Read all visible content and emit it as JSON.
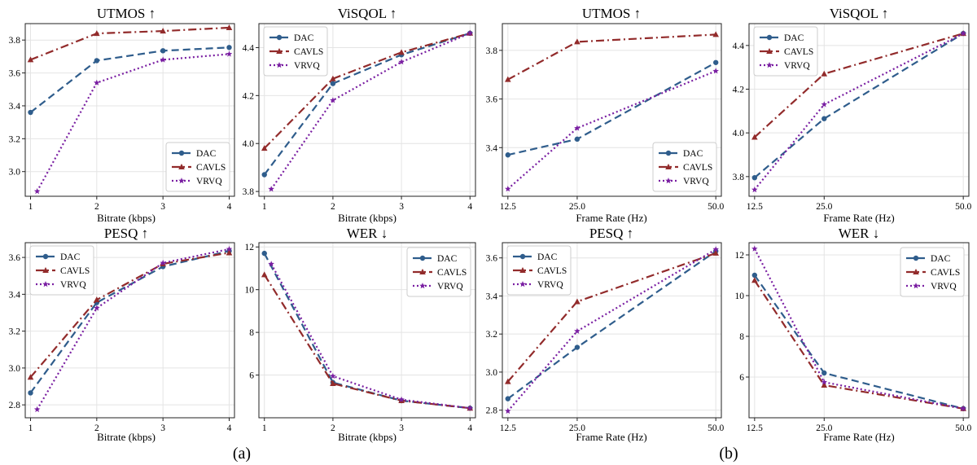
{
  "colors": {
    "DAC": "#2f5d8c",
    "CAVLS": "#922b2b",
    "VRVQ": "#7a1fa2"
  },
  "legend_names": [
    "DAC",
    "CAVLS",
    "VRVQ"
  ],
  "captions": [
    "(a)",
    "(b)"
  ],
  "chart_data": [
    {
      "type": "line",
      "group": "(a)",
      "title": "UTMOS ↑",
      "xlabel": "Bitrate (kbps)",
      "ylabel": "",
      "legend": "bottom-right",
      "grid": true,
      "xlim": [
        0.92,
        4.08
      ],
      "ylim": [
        2.85,
        3.9
      ],
      "xticks": [
        1,
        2,
        3,
        4
      ],
      "xtick_labels": [
        "1",
        "2",
        "3",
        "4"
      ],
      "yticks": [
        3.0,
        3.2,
        3.4,
        3.6,
        3.8
      ],
      "ytick_labels": [
        "3.0",
        "3.2",
        "3.4",
        "3.6",
        "3.8"
      ],
      "series": [
        {
          "name": "DAC",
          "x": [
            1,
            2,
            3,
            4
          ],
          "values": [
            3.36,
            3.675,
            3.735,
            3.755
          ]
        },
        {
          "name": "CAVLS",
          "x": [
            1,
            2,
            3,
            4
          ],
          "values": [
            3.68,
            3.84,
            3.855,
            3.875
          ]
        },
        {
          "name": "VRVQ",
          "x": [
            1.1,
            2,
            3,
            4
          ],
          "values": [
            2.88,
            3.54,
            3.68,
            3.715
          ]
        }
      ]
    },
    {
      "type": "line",
      "group": "(a)",
      "title": "ViSQOL ↑",
      "xlabel": "Bitrate (kbps)",
      "ylabel": "",
      "legend": "top-left",
      "grid": true,
      "xlim": [
        0.92,
        4.08
      ],
      "ylim": [
        3.78,
        4.5
      ],
      "xticks": [
        1,
        2,
        3,
        4
      ],
      "xtick_labels": [
        "1",
        "2",
        "3",
        "4"
      ],
      "yticks": [
        3.8,
        4.0,
        4.2,
        4.4
      ],
      "ytick_labels": [
        "3.8",
        "4.0",
        "4.2",
        "4.4"
      ],
      "series": [
        {
          "name": "DAC",
          "x": [
            1,
            2,
            3,
            4
          ],
          "values": [
            3.87,
            4.25,
            4.37,
            4.46
          ]
        },
        {
          "name": "CAVLS",
          "x": [
            1,
            2,
            3,
            4
          ],
          "values": [
            3.98,
            4.27,
            4.38,
            4.46
          ]
        },
        {
          "name": "VRVQ",
          "x": [
            1.1,
            2,
            3,
            4
          ],
          "values": [
            3.81,
            4.18,
            4.34,
            4.46
          ]
        }
      ]
    },
    {
      "type": "line",
      "group": "(b)",
      "title": "UTMOS ↑",
      "xlabel": "Frame Rate (Hz)",
      "ylabel": "",
      "legend": "bottom-right",
      "grid": true,
      "xlim": [
        11.5,
        51
      ],
      "ylim": [
        3.2,
        3.91
      ],
      "xticks": [
        12.5,
        25,
        50
      ],
      "xtick_labels": [
        "12.5",
        "25.0",
        "50.0"
      ],
      "yticks": [
        3.4,
        3.6,
        3.8
      ],
      "ytick_labels": [
        "3.4",
        "3.6",
        "3.8"
      ],
      "series": [
        {
          "name": "DAC",
          "x": [
            12.5,
            25,
            50
          ],
          "values": [
            3.37,
            3.435,
            3.75
          ]
        },
        {
          "name": "CAVLS",
          "x": [
            12.5,
            25,
            50
          ],
          "values": [
            3.68,
            3.835,
            3.865
          ]
        },
        {
          "name": "VRVQ",
          "x": [
            12.5,
            25,
            50
          ],
          "values": [
            3.23,
            3.48,
            3.715
          ]
        }
      ]
    },
    {
      "type": "line",
      "group": "(b)",
      "title": "ViSQOL ↑",
      "xlabel": "Frame Rate (Hz)",
      "ylabel": "",
      "legend": "top-left",
      "grid": true,
      "xlim": [
        11.5,
        51
      ],
      "ylim": [
        3.71,
        4.5
      ],
      "xticks": [
        12.5,
        25,
        50
      ],
      "xtick_labels": [
        "12.5",
        "25.0",
        "50.0"
      ],
      "yticks": [
        3.8,
        4.0,
        4.2,
        4.4
      ],
      "ytick_labels": [
        "3.8",
        "4.0",
        "4.2",
        "4.4"
      ],
      "series": [
        {
          "name": "DAC",
          "x": [
            12.5,
            25,
            50
          ],
          "values": [
            3.795,
            4.065,
            4.455
          ]
        },
        {
          "name": "CAVLS",
          "x": [
            12.5,
            25,
            50
          ],
          "values": [
            3.98,
            4.27,
            4.455
          ]
        },
        {
          "name": "VRVQ",
          "x": [
            12.5,
            25,
            50
          ],
          "values": [
            3.74,
            4.13,
            4.455
          ]
        }
      ]
    },
    {
      "type": "line",
      "group": "(a)",
      "title": "PESQ ↑",
      "xlabel": "Bitrate (kbps)",
      "ylabel": "",
      "legend": "top-left",
      "grid": true,
      "xlim": [
        0.92,
        4.08
      ],
      "ylim": [
        2.73,
        3.68
      ],
      "xticks": [
        1,
        2,
        3,
        4
      ],
      "xtick_labels": [
        "1",
        "2",
        "3",
        "4"
      ],
      "yticks": [
        2.8,
        3.0,
        3.2,
        3.4,
        3.6
      ],
      "ytick_labels": [
        "2.8",
        "3.0",
        "3.2",
        "3.4",
        "3.6"
      ],
      "series": [
        {
          "name": "DAC",
          "x": [
            1,
            2,
            3,
            4
          ],
          "values": [
            2.865,
            3.355,
            3.55,
            3.635
          ]
        },
        {
          "name": "CAVLS",
          "x": [
            1,
            2,
            3,
            4
          ],
          "values": [
            2.95,
            3.37,
            3.565,
            3.625
          ]
        },
        {
          "name": "VRVQ",
          "x": [
            1.1,
            2,
            3,
            4
          ],
          "values": [
            2.775,
            3.325,
            3.57,
            3.645
          ]
        }
      ]
    },
    {
      "type": "line",
      "group": "(a)",
      "title": "WER ↓",
      "xlabel": "Bitrate (kbps)",
      "ylabel": "",
      "legend": "top-right",
      "grid": true,
      "xlim": [
        0.92,
        4.08
      ],
      "ylim": [
        4.0,
        12.2
      ],
      "xticks": [
        1,
        2,
        3,
        4
      ],
      "xtick_labels": [
        "1",
        "2",
        "3",
        "4"
      ],
      "yticks": [
        6,
        8,
        10,
        12
      ],
      "ytick_labels": [
        "6",
        "8",
        "10",
        "12"
      ],
      "series": [
        {
          "name": "DAC",
          "x": [
            1,
            2,
            3,
            4
          ],
          "values": [
            11.7,
            5.65,
            4.8,
            4.45
          ]
        },
        {
          "name": "CAVLS",
          "x": [
            1,
            2,
            3,
            4
          ],
          "values": [
            10.7,
            5.6,
            4.8,
            4.45
          ]
        },
        {
          "name": "VRVQ",
          "x": [
            1.1,
            2,
            3,
            4
          ],
          "values": [
            11.2,
            5.95,
            4.85,
            4.45
          ]
        }
      ]
    },
    {
      "type": "line",
      "group": "(b)",
      "title": "PESQ ↑",
      "xlabel": "Frame Rate (Hz)",
      "ylabel": "",
      "legend": "top-left",
      "grid": true,
      "xlim": [
        11.5,
        51
      ],
      "ylim": [
        2.76,
        3.68
      ],
      "xticks": [
        12.5,
        25,
        50
      ],
      "xtick_labels": [
        "12.5",
        "25.0",
        "50.0"
      ],
      "yticks": [
        2.8,
        3.0,
        3.2,
        3.4,
        3.6
      ],
      "ytick_labels": [
        "2.8",
        "3.0",
        "3.2",
        "3.4",
        "3.6"
      ],
      "series": [
        {
          "name": "DAC",
          "x": [
            12.5,
            25,
            50
          ],
          "values": [
            2.86,
            3.13,
            3.635
          ]
        },
        {
          "name": "CAVLS",
          "x": [
            12.5,
            25,
            50
          ],
          "values": [
            2.95,
            3.37,
            3.625
          ]
        },
        {
          "name": "VRVQ",
          "x": [
            12.5,
            25,
            50
          ],
          "values": [
            2.795,
            3.215,
            3.645
          ]
        }
      ]
    },
    {
      "type": "line",
      "group": "(b)",
      "title": "WER ↓",
      "xlabel": "Frame Rate (Hz)",
      "ylabel": "",
      "legend": "top-right",
      "grid": true,
      "xlim": [
        11.5,
        51
      ],
      "ylim": [
        4.0,
        12.6
      ],
      "xticks": [
        12.5,
        25,
        50
      ],
      "xtick_labels": [
        "12.5",
        "25.0",
        "50.0"
      ],
      "yticks": [
        6,
        8,
        10,
        12
      ],
      "ytick_labels": [
        "6",
        "8",
        "10",
        "12"
      ],
      "series": [
        {
          "name": "DAC",
          "x": [
            12.5,
            25,
            50
          ],
          "values": [
            11.0,
            6.2,
            4.45
          ]
        },
        {
          "name": "CAVLS",
          "x": [
            12.5,
            25,
            50
          ],
          "values": [
            10.75,
            5.6,
            4.45
          ]
        },
        {
          "name": "VRVQ",
          "x": [
            12.5,
            25,
            50
          ],
          "values": [
            12.3,
            5.75,
            4.45
          ]
        }
      ]
    }
  ]
}
